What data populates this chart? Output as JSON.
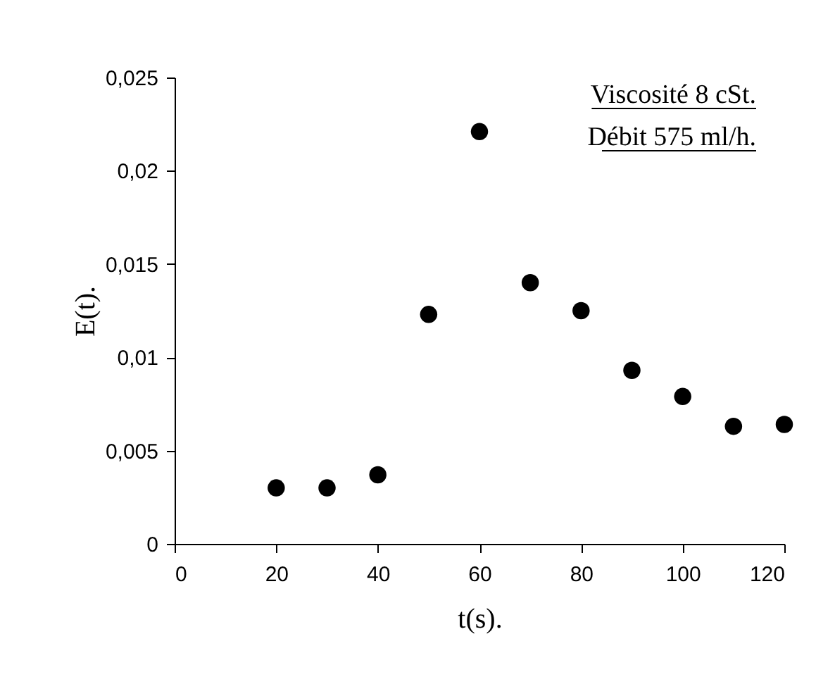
{
  "chart_data": {
    "type": "scatter",
    "xlabel": "t(s).",
    "ylabel": "E(t).",
    "x": [
      20,
      30,
      40,
      50,
      60,
      70,
      80,
      90,
      100,
      110,
      120
    ],
    "series": [
      {
        "color": "#000000",
        "values": [
          0.003,
          0.003,
          0.0037,
          0.0123,
          0.0221,
          0.014,
          0.0125,
          0.0093,
          0.0079,
          0.0063,
          0.0064
        ]
      }
    ],
    "xlim": [
      0,
      120
    ],
    "xticks": [
      0,
      20,
      40,
      60,
      80,
      100,
      120
    ],
    "ylim": [
      0,
      0.025
    ],
    "yticks": [
      0,
      {
        "value": 0.005,
        "label": "0,005"
      },
      {
        "value": 0.01,
        "label": "0,01"
      },
      {
        "value": 0.015,
        "label": "0,015"
      },
      {
        "value": 0.02,
        "label": "0,02"
      },
      {
        "value": 0.025,
        "label": "0,025"
      }
    ],
    "annotations": [
      "Viscosité 8 cSt.",
      "Débit 575 ml/h."
    ],
    "grid": false,
    "marker": "circle"
  }
}
